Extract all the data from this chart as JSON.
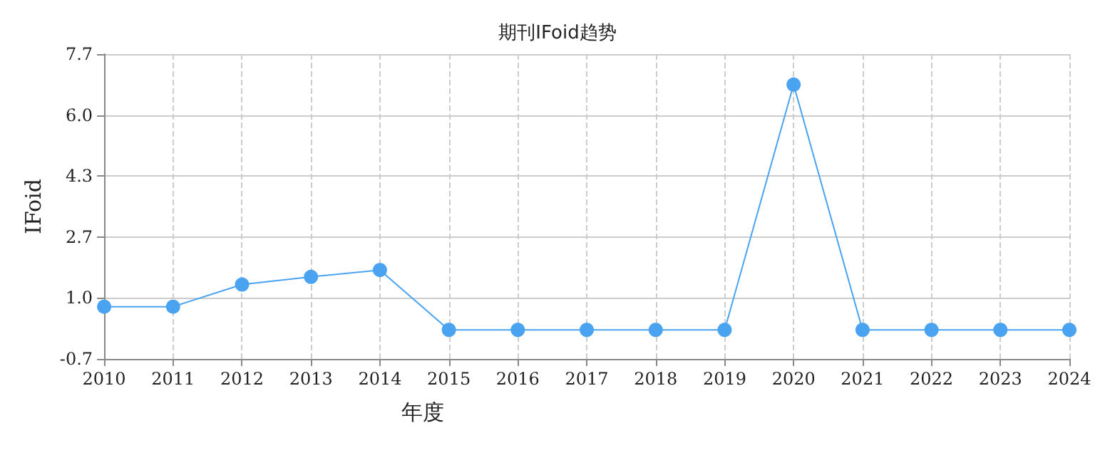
{
  "chart_data": {
    "type": "line",
    "title": "期刊IFoid趋势",
    "xlabel": "年度",
    "ylabel": "IFoid",
    "categories": [
      "2010",
      "2011",
      "2012",
      "2013",
      "2014",
      "2015",
      "2016",
      "2017",
      "2018",
      "2019",
      "2020",
      "2021",
      "2022",
      "2023",
      "2024"
    ],
    "series": [
      {
        "color": "#4aa3f0",
        "values": [
          0.74,
          0.74,
          1.35,
          1.56,
          1.75,
          0.1,
          0.1,
          0.1,
          0.1,
          0.1,
          6.86,
          0.1,
          0.1,
          0.1,
          0.1
        ]
      }
    ],
    "ylim": [
      -0.7,
      7.7
    ],
    "yticks": [
      -0.7,
      {
        "value": 0.98,
        "label": "1.0"
      },
      {
        "value": 2.66,
        "label": "2.7"
      },
      {
        "value": 4.34,
        "label": "4.3"
      },
      {
        "value": 6.02,
        "label": "6.0"
      },
      7.7
    ],
    "grid": true,
    "marker": "circle",
    "line_style": "solid"
  }
}
